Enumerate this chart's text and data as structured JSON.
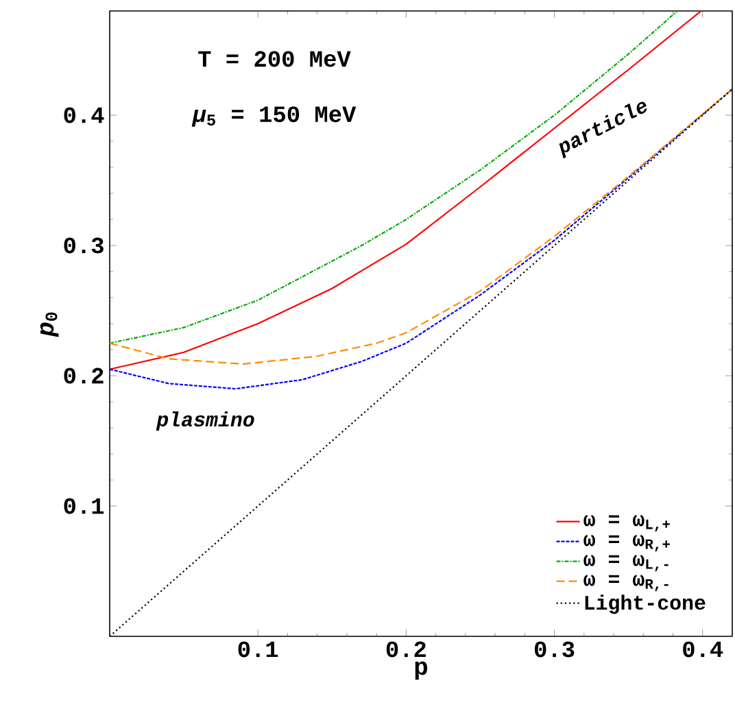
{
  "chart_data": {
    "type": "line",
    "xlabel": "p",
    "ylabel": "*p*$_{0}$",
    "annotations": [
      "T = 200 MeV",
      "*μ*$_{5}$ = 150 MeV",
      "particle",
      "plasmino"
    ],
    "xlim": [
      0,
      0.42
    ],
    "ylim": [
      0,
      0.48
    ],
    "xticks": [
      0.1,
      0.2,
      0.3,
      0.4
    ],
    "yticks": [
      0.1,
      0.2,
      0.3,
      0.4
    ],
    "legend": "bottom right",
    "grid": false,
    "series": [
      {
        "name": "ω = ω$_{L,+}$",
        "color": "#ff0000",
        "line_style": "solid",
        "x": [
          0,
          0.05,
          0.1,
          0.15,
          0.2,
          0.25,
          0.3,
          0.35,
          0.399
        ],
        "values": [
          0.205,
          0.218,
          0.24,
          0.267,
          0.301,
          0.345,
          0.39,
          0.435,
          0.48
        ]
      },
      {
        "name": "ω = ω$_{R,+}$",
        "color": "#0000ff",
        "line_style": "dashed",
        "x": [
          0,
          0.04,
          0.085,
          0.13,
          0.17,
          0.2,
          0.25,
          0.3,
          0.35,
          0.42
        ],
        "values": [
          0.205,
          0.194,
          0.19,
          0.197,
          0.211,
          0.225,
          0.262,
          0.304,
          0.352,
          0.42
        ]
      },
      {
        "name": "ω = ω$_{L,-}$",
        "color": "#00aa00",
        "line_style": "dashdotted",
        "x": [
          0,
          0.05,
          0.1,
          0.17,
          0.2,
          0.25,
          0.3,
          0.35,
          0.383
        ],
        "values": [
          0.225,
          0.237,
          0.258,
          0.3,
          0.32,
          0.358,
          0.4,
          0.447,
          0.48
        ]
      },
      {
        "name": "ω = ω$_{R,-}$",
        "color": "#ff8c00",
        "line_style": "longdashed",
        "x": [
          0,
          0.04,
          0.09,
          0.14,
          0.18,
          0.2,
          0.25,
          0.3,
          0.35,
          0.42
        ],
        "values": [
          0.225,
          0.213,
          0.209,
          0.215,
          0.225,
          0.233,
          0.265,
          0.307,
          0.353,
          0.42
        ]
      },
      {
        "name": "Light-cone",
        "color": "#000000",
        "line_style": "dotted",
        "x": [
          0,
          0.42
        ],
        "values": [
          0,
          0.42
        ]
      }
    ]
  }
}
